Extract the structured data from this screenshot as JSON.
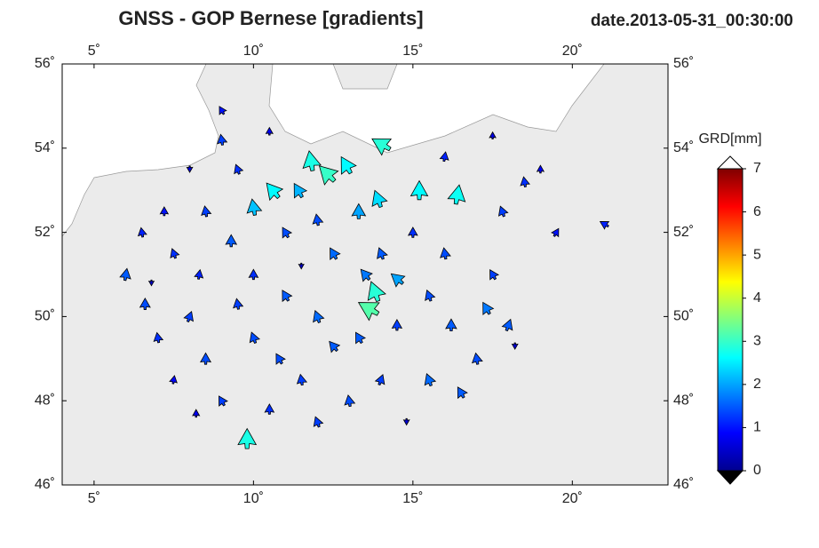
{
  "chart_data": {
    "type": "vector",
    "title": "GNSS  -  GOP Bernese [gradients]",
    "subtitle": "date.2013-05-31_00:30:00",
    "xlim": [
      4,
      23
    ],
    "ylim": [
      46,
      56
    ],
    "xticks": [
      {
        "value": 5,
        "label": "5˚"
      },
      {
        "value": 10,
        "label": "10˚"
      },
      {
        "value": 15,
        "label": "15˚"
      },
      {
        "value": 20,
        "label": "20˚"
      }
    ],
    "yticks": [
      {
        "value": 46,
        "label": "46˚"
      },
      {
        "value": 48,
        "label": "48˚"
      },
      {
        "value": 50,
        "label": "50˚"
      },
      {
        "value": 52,
        "label": "52˚"
      },
      {
        "value": 54,
        "label": "54˚"
      },
      {
        "value": 56,
        "label": "56˚"
      }
    ],
    "colorbar": {
      "label": "GRD[mm]",
      "lim": [
        0,
        7
      ],
      "ticks": [
        0,
        1,
        2,
        3,
        4,
        5,
        6,
        7
      ]
    },
    "vectors": {
      "lon": [
        13.6,
        12.3,
        11.8,
        13.8,
        9.8,
        14.0,
        15.2,
        16.4,
        10.6,
        12.9,
        13.9,
        10.0,
        14.5,
        13.3,
        11.4,
        6.0,
        6.6,
        7.5,
        8.5,
        9.3,
        8.0,
        7.0,
        8.5,
        9.0,
        10.0,
        11.0,
        12.0,
        12.5,
        11.5,
        10.5,
        12.0,
        13.0,
        14.0,
        15.5,
        16.5,
        17.0,
        16.2,
        17.3,
        18.0,
        17.5,
        16.0,
        15.0,
        17.8,
        18.5,
        16.0,
        19.5,
        21.0,
        9.0,
        9.5,
        11.0,
        12.5,
        13.5,
        14.0,
        12.0,
        10.0,
        8.3,
        7.2,
        6.5,
        9.5,
        10.8,
        13.3,
        14.5,
        15.5,
        8.2,
        7.5,
        9.0,
        10.5,
        17.5,
        19.0,
        8.0,
        11.5,
        14.8,
        18.2,
        6.8
      ],
      "lat": [
        50.2,
        53.4,
        53.7,
        50.6,
        47.1,
        54.1,
        53.0,
        52.9,
        53.0,
        53.6,
        52.8,
        52.6,
        50.9,
        52.5,
        53.0,
        51.0,
        50.3,
        51.5,
        52.5,
        51.8,
        50.0,
        49.5,
        49.0,
        48.0,
        49.5,
        50.5,
        50.0,
        49.3,
        48.5,
        47.8,
        47.5,
        48.0,
        48.5,
        48.5,
        48.2,
        49.0,
        49.8,
        50.2,
        49.8,
        51.0,
        51.5,
        52.0,
        52.5,
        53.2,
        53.8,
        52.0,
        52.2,
        54.2,
        53.5,
        52.0,
        51.5,
        51.0,
        51.5,
        52.3,
        51.0,
        51.0,
        52.5,
        52.0,
        50.3,
        49.0,
        49.5,
        49.8,
        50.5,
        47.7,
        48.5,
        54.9,
        54.4,
        54.3,
        53.5,
        53.5,
        51.2,
        47.5,
        49.3,
        50.8
      ],
      "size": [
        3.2,
        3.0,
        2.8,
        2.9,
        2.8,
        2.9,
        2.6,
        2.7,
        2.6,
        2.6,
        2.4,
        2.2,
        2.0,
        2.0,
        2.1,
        1.5,
        1.4,
        1.2,
        1.3,
        1.5,
        1.3,
        1.2,
        1.4,
        1.3,
        1.4,
        1.5,
        1.6,
        1.5,
        1.3,
        1.2,
        1.3,
        1.4,
        1.3,
        1.6,
        1.5,
        1.4,
        1.5,
        1.7,
        1.5,
        1.3,
        1.4,
        1.2,
        1.3,
        1.2,
        1.1,
        1.0,
        1.1,
        1.3,
        1.2,
        1.4,
        1.6,
        1.7,
        1.5,
        1.4,
        1.2,
        1.1,
        1.0,
        1.1,
        1.3,
        1.4,
        1.5,
        1.3,
        1.4,
        0.8,
        0.9,
        1.0,
        0.8,
        0.7,
        0.8,
        0.6,
        0.5,
        0.6,
        0.6,
        0.5
      ],
      "direction": [
        -60,
        -45,
        -10,
        -20,
        0,
        -60,
        0,
        10,
        -40,
        -30,
        -20,
        -10,
        -50,
        0,
        -30,
        10,
        0,
        -20,
        -10,
        0,
        20,
        -10,
        0,
        -30,
        -20,
        -30,
        -20,
        -40,
        -10,
        0,
        -20,
        -10,
        20,
        -20,
        -30,
        -10,
        0,
        -30,
        20,
        -30,
        -10,
        0,
        -20,
        -10,
        10,
        30,
        -60,
        -10,
        -20,
        -30,
        -30,
        -40,
        -20,
        -10,
        0,
        10,
        0,
        -10,
        -10,
        -30,
        -30,
        0,
        -20,
        0,
        10,
        -30,
        0,
        0,
        0,
        180,
        180,
        180,
        180,
        180
      ]
    }
  }
}
